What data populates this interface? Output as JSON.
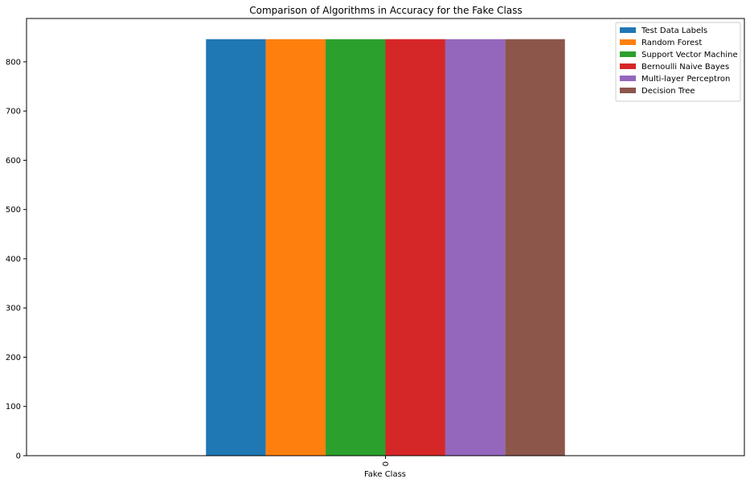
{
  "chart_data": {
    "type": "bar",
    "title": "Comparison of Algorithms in Accuracy for the Fake Class",
    "xlabel": "Fake Class",
    "ylabel": "",
    "categories": [
      "0"
    ],
    "yticks": [
      0,
      100,
      200,
      300,
      400,
      500,
      600,
      700,
      800
    ],
    "ylim": [
      0,
      888
    ],
    "grid": false,
    "legend_position": "top-right",
    "series": [
      {
        "name": "Test Data Labels",
        "values": [
          846
        ],
        "color": "#1f77b4"
      },
      {
        "name": "Random Forest",
        "values": [
          846
        ],
        "color": "#ff7f0e"
      },
      {
        "name": "Support Vector Machine",
        "values": [
          846
        ],
        "color": "#2ca02c"
      },
      {
        "name": "Bernoulli Naive Bayes",
        "values": [
          846
        ],
        "color": "#d62728"
      },
      {
        "name": "Multi-layer Perceptron",
        "values": [
          846
        ],
        "color": "#9467bd"
      },
      {
        "name": "Decision Tree",
        "values": [
          846
        ],
        "color": "#8c564b"
      }
    ]
  }
}
